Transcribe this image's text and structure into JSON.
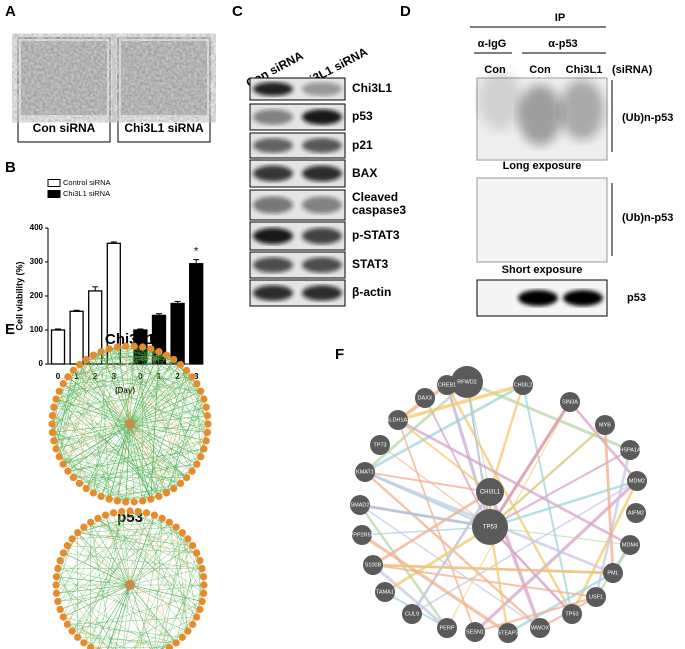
{
  "panel_labels": [
    "A",
    "B",
    "C",
    "D",
    "E",
    "F"
  ],
  "panel_a": {
    "captions": [
      "Con siRNA",
      "Chi3L1 siRNA"
    ]
  },
  "chart_data": {
    "type": "bar",
    "ylabel": "Cell viability (%)",
    "xlabel": "(Day)",
    "categories": [
      "0",
      "1",
      "2",
      "3",
      "0",
      "1",
      "2",
      "3"
    ],
    "series": [
      {
        "name": "Control siRNA",
        "color": "#ffffff",
        "values": [
          100,
          155,
          215,
          355,
          null,
          null,
          null,
          null
        ],
        "errors": [
          3,
          3,
          12,
          4,
          null,
          null,
          null,
          null
        ]
      },
      {
        "name": "Chi3L1 siRNA",
        "color": "#000000",
        "values": [
          null,
          null,
          null,
          null,
          100,
          143,
          178,
          295
        ],
        "errors": [
          null,
          null,
          null,
          null,
          3,
          5,
          6,
          12
        ]
      }
    ],
    "ylim": [
      0,
      400
    ],
    "yticks": [
      0,
      100,
      200,
      300,
      400
    ],
    "annotation": "*"
  },
  "panel_c": {
    "columns": [
      "Con siRNA",
      "Chi3L1 siRNA"
    ],
    "bands": [
      "Chi3L1",
      "p53",
      "p21",
      "BAX",
      "Cleaved caspase3",
      "p-STAT3",
      "STAT3",
      "β-actin"
    ]
  },
  "panel_d": {
    "ip": "IP",
    "antibodies": [
      "α-IgG",
      "α-p53"
    ],
    "lanes": [
      "Con",
      "Con",
      "Chi3L1"
    ],
    "lane_note": "(siRNA)",
    "ub_labels": [
      "(Ub)n-p53",
      "(Ub)n-p53"
    ],
    "exposures": [
      "Long exposure",
      "Short exposure"
    ],
    "bottom_band": "p53"
  },
  "panel_e": {
    "titles": [
      "Chi3L1",
      "p53"
    ]
  },
  "panel_f": {
    "nodes": [
      "RFWD2",
      "CHI3L2",
      "SIN3A",
      "MYB",
      "HSPA1A",
      "MDM2",
      "AIFM2",
      "MDM4",
      "PML",
      "USF1",
      "TP63",
      "WWOX",
      "STEAP3",
      "SESN1",
      "PERP",
      "CUL9",
      "TAMA1",
      "S100B",
      "PPP2R5E",
      "SMAD2",
      "KMAT1",
      "TP73",
      "ALDH1A3",
      "DAXX",
      "CREB1"
    ],
    "center_nodes": [
      "CHI3L1",
      "TP53"
    ]
  }
}
